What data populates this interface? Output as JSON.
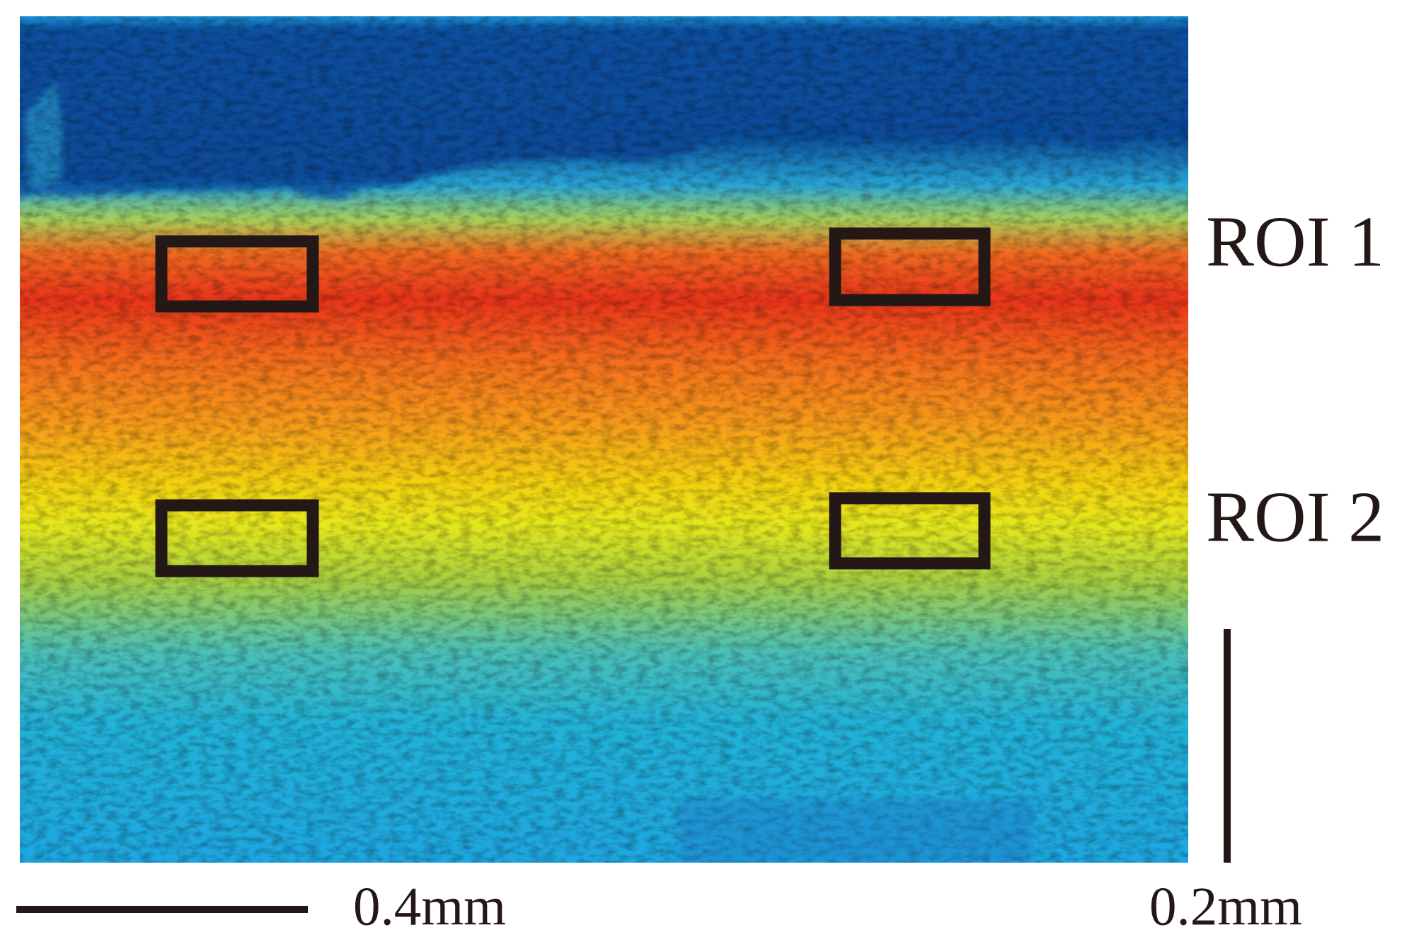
{
  "image": {
    "roi_labels": [
      "ROI 1",
      "ROI 2"
    ],
    "scale_bars": [
      {
        "label": "0.4mm"
      },
      {
        "label": "0.2mm"
      }
    ]
  }
}
